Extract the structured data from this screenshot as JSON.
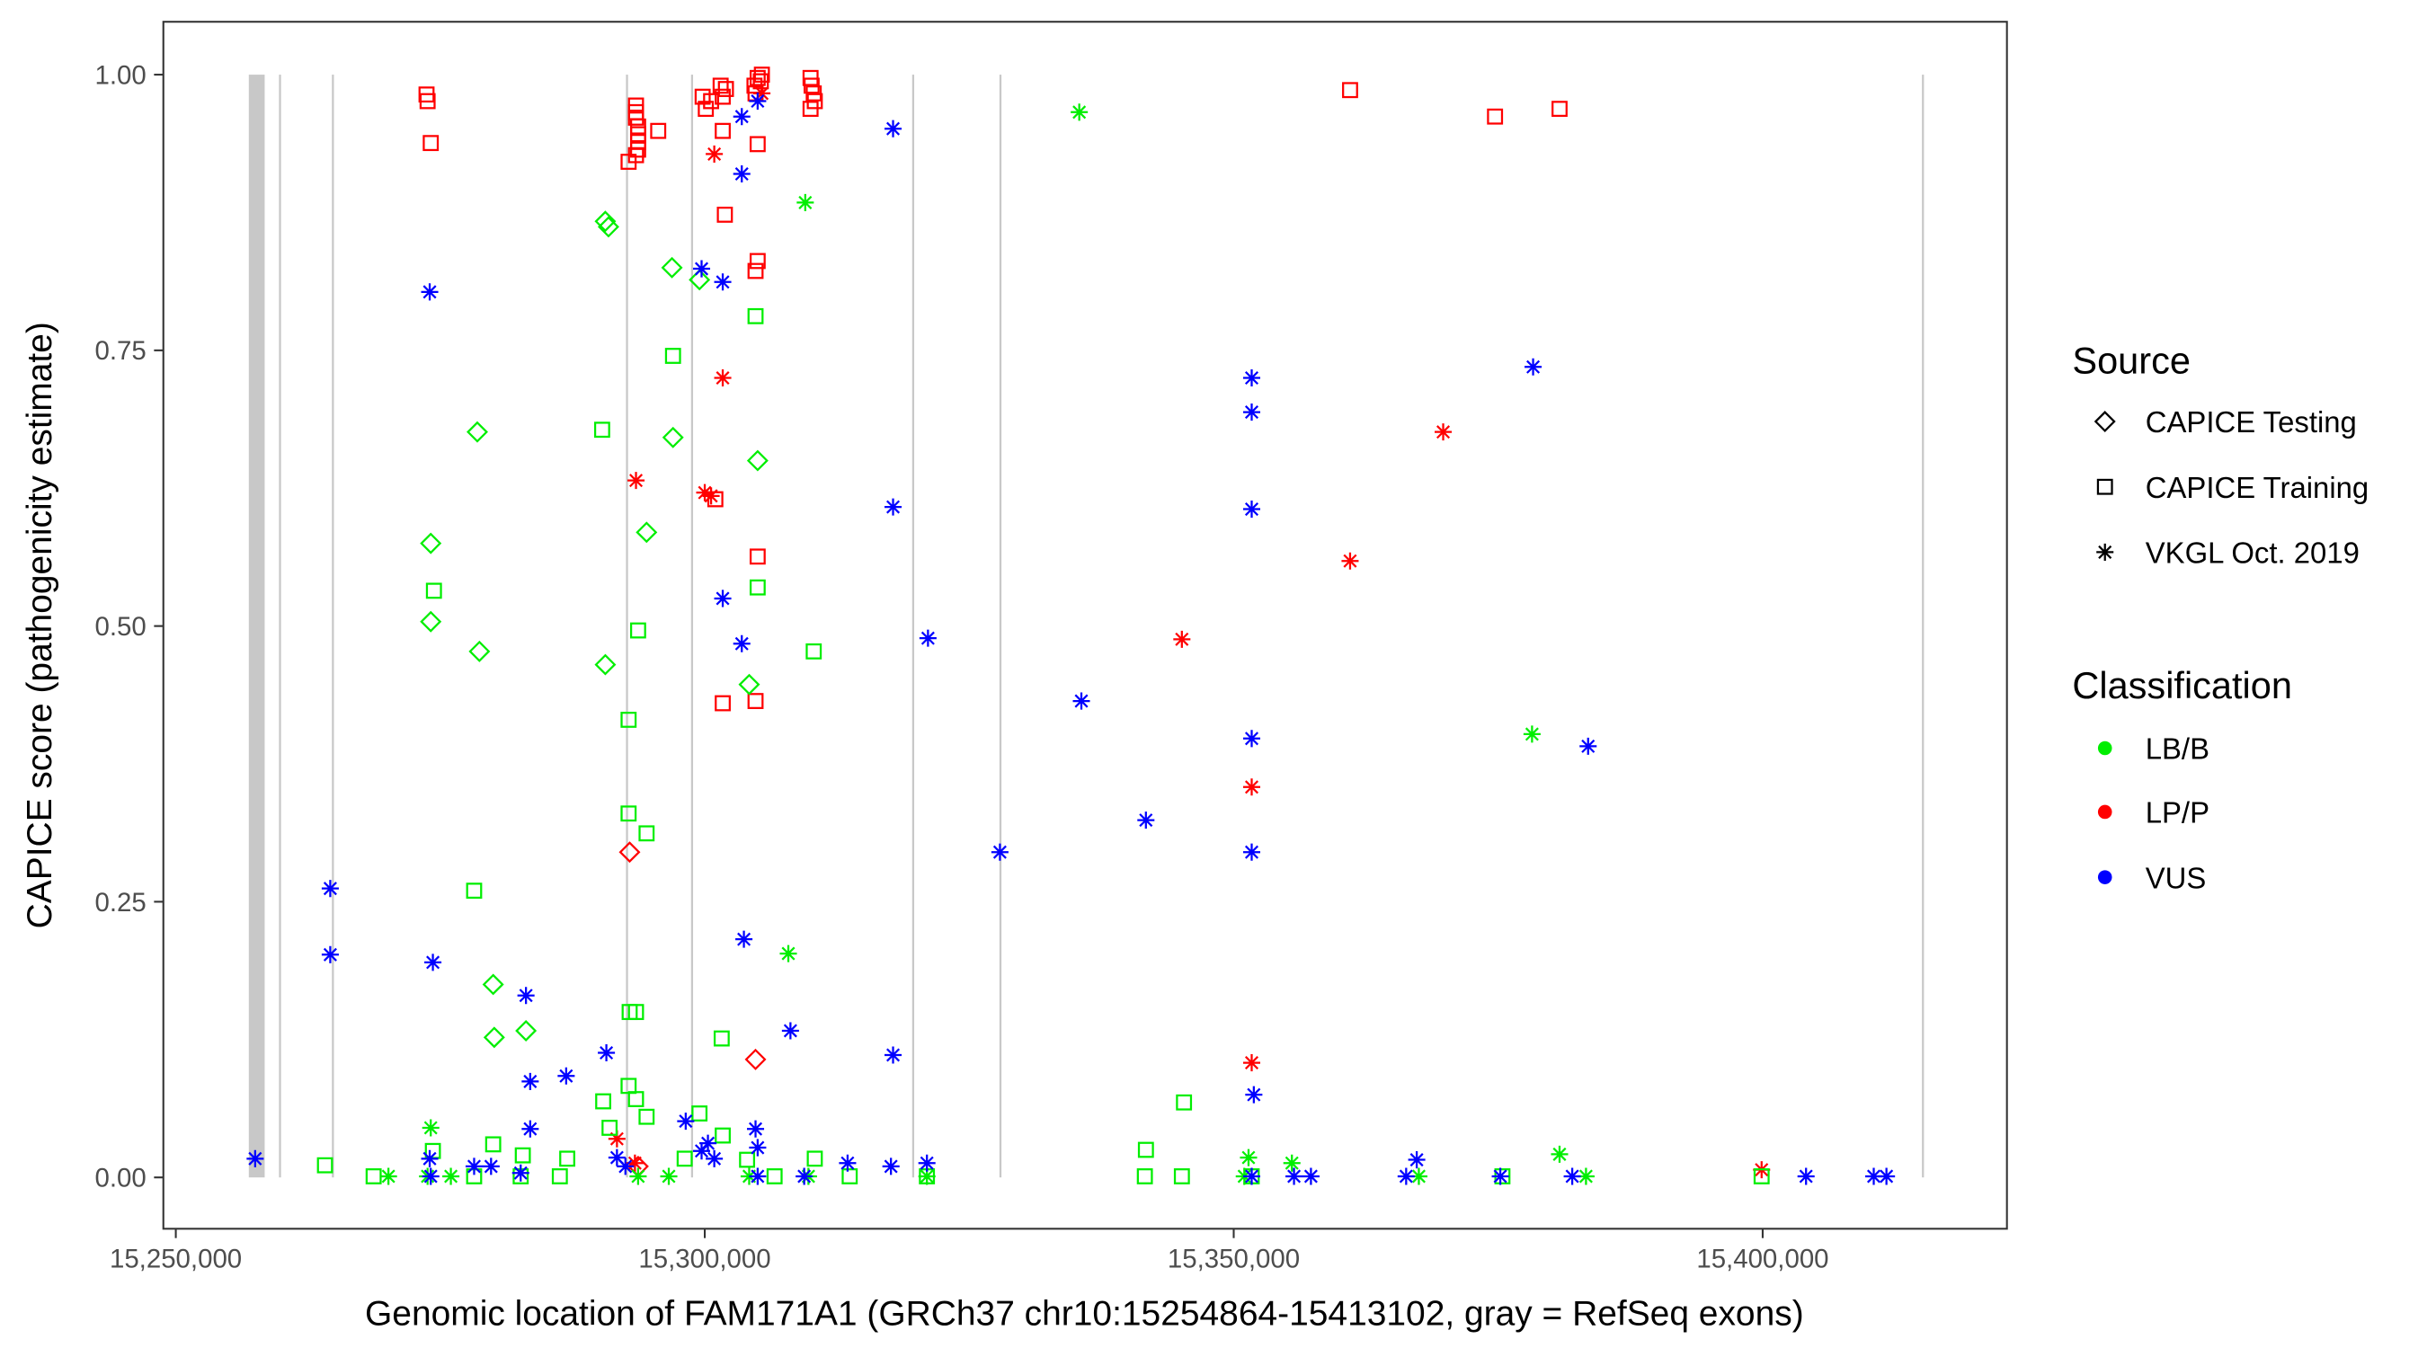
{
  "chart_data": {
    "type": "scatter",
    "xlabel": "Genomic location of FAM171A1 (GRCh37 chr10:15254864-15413102, gray = RefSeq exons)",
    "ylabel": "CAPICE score (pathogenicity estimate)",
    "xlim": [
      15248800,
      15423000
    ],
    "ylim": [
      -0.046,
      1.048
    ],
    "xticks": [
      15250000,
      15300000,
      15350000,
      15400000
    ],
    "xtick_labels": [
      "15,250,000",
      "15,300,000",
      "15,350,000",
      "15,400,000"
    ],
    "yticks": [
      0,
      0.25,
      0.5,
      0.75,
      1
    ],
    "ytick_labels": [
      "0.00",
      "0.25",
      "0.50",
      "0.75",
      "1.00"
    ],
    "grid": false,
    "legend_placement": "right",
    "legend": {
      "source_title": "Source",
      "sources": [
        "CAPICE Testing",
        "CAPICE Training",
        "VKGL Oct. 2019"
      ],
      "source_shapes": [
        "diamond",
        "square",
        "asterisk"
      ],
      "class_title": "Classification",
      "classes": [
        "LB/B",
        "LP/P",
        "VUS"
      ],
      "class_colors": [
        "#00EE00",
        "#FF0000",
        "#0000FF"
      ]
    },
    "exons": [
      [
        15256900,
        15258400
      ],
      [
        15259850,
        15259850
      ],
      [
        15264850,
        15264850
      ],
      [
        15292650,
        15292650
      ],
      [
        15298800,
        15298800
      ],
      [
        15319700,
        15319700
      ],
      [
        15327950,
        15327950
      ],
      [
        15415150,
        15415150
      ]
    ],
    "points_format": "[position, score, source_index, class_index]",
    "points": [
      [
        15273700,
        0.982,
        1,
        1
      ],
      [
        15273800,
        0.976,
        1,
        1
      ],
      [
        15274100,
        0.938,
        1,
        1
      ],
      [
        15293500,
        0.972,
        1,
        1
      ],
      [
        15293500,
        0.966,
        1,
        1
      ],
      [
        15293500,
        0.961,
        1,
        1
      ],
      [
        15293700,
        0.953,
        1,
        1
      ],
      [
        15293700,
        0.946,
        1,
        1
      ],
      [
        15293700,
        0.939,
        1,
        1
      ],
      [
        15293700,
        0.932,
        1,
        1
      ],
      [
        15293500,
        0.927,
        1,
        1
      ],
      [
        15292800,
        0.921,
        1,
        1
      ],
      [
        15295600,
        0.949,
        1,
        1
      ],
      [
        15299800,
        0.98,
        1,
        1
      ],
      [
        15300100,
        0.969,
        1,
        1
      ],
      [
        15300600,
        0.976,
        1,
        1
      ],
      [
        15301500,
        0.99,
        1,
        1
      ],
      [
        15301700,
        0.98,
        1,
        1
      ],
      [
        15302000,
        0.987,
        1,
        1
      ],
      [
        15304700,
        0.99,
        1,
        1
      ],
      [
        15305000,
        0.997,
        1,
        1
      ],
      [
        15305300,
        0.994,
        1,
        1
      ],
      [
        15304800,
        0.983,
        1,
        1
      ],
      [
        15305400,
        1.0,
        1,
        1
      ],
      [
        15310000,
        0.997,
        1,
        1
      ],
      [
        15310100,
        0.99,
        1,
        1
      ],
      [
        15310300,
        0.983,
        1,
        1
      ],
      [
        15310400,
        0.976,
        1,
        1
      ],
      [
        15310000,
        0.969,
        1,
        1
      ],
      [
        15305000,
        0.937,
        1,
        1
      ],
      [
        15305000,
        0.831,
        1,
        1
      ],
      [
        15304800,
        0.822,
        1,
        1
      ],
      [
        15301900,
        0.873,
        1,
        1
      ],
      [
        15301700,
        0.949,
        1,
        1
      ],
      [
        15301000,
        0.615,
        1,
        1
      ],
      [
        15305000,
        0.563,
        1,
        1
      ],
      [
        15301700,
        0.43,
        1,
        1
      ],
      [
        15304800,
        0.432,
        1,
        1
      ],
      [
        15361000,
        0.986,
        1,
        1
      ],
      [
        15374700,
        0.962,
        1,
        1
      ],
      [
        15380800,
        0.969,
        1,
        1
      ],
      [
        15300900,
        0.928,
        2,
        1
      ],
      [
        15301700,
        0.725,
        2,
        1
      ],
      [
        15293500,
        0.632,
        2,
        1
      ],
      [
        15300000,
        0.621,
        2,
        1
      ],
      [
        15300600,
        0.618,
        2,
        1
      ],
      [
        15305400,
        0.983,
        2,
        1
      ],
      [
        15369800,
        0.676,
        2,
        1
      ],
      [
        15361000,
        0.559,
        2,
        1
      ],
      [
        15345100,
        0.488,
        2,
        1
      ],
      [
        15351700,
        0.354,
        2,
        1
      ],
      [
        15351700,
        0.104,
        2,
        1
      ],
      [
        15291700,
        0.035,
        2,
        1
      ],
      [
        15399900,
        0.007,
        2,
        1
      ],
      [
        15293400,
        0.013,
        2,
        1
      ],
      [
        15292900,
        0.295,
        0,
        1
      ],
      [
        15304800,
        0.107,
        0,
        1
      ],
      [
        15293700,
        0.01,
        0,
        1
      ],
      [
        15297000,
        0.745,
        1,
        0
      ],
      [
        15304800,
        0.781,
        1,
        0
      ],
      [
        15290300,
        0.678,
        1,
        0
      ],
      [
        15293700,
        0.496,
        1,
        0
      ],
      [
        15274400,
        0.532,
        1,
        0
      ],
      [
        15310300,
        0.477,
        1,
        0
      ],
      [
        15305000,
        0.535,
        1,
        0
      ],
      [
        15292800,
        0.415,
        1,
        0
      ],
      [
        15292800,
        0.33,
        1,
        0
      ],
      [
        15294500,
        0.312,
        1,
        0
      ],
      [
        15278200,
        0.26,
        1,
        0
      ],
      [
        15301600,
        0.126,
        1,
        0
      ],
      [
        15292900,
        0.15,
        1,
        0
      ],
      [
        15293500,
        0.15,
        1,
        0
      ],
      [
        15264100,
        0.011,
        1,
        0
      ],
      [
        15268700,
        0.001,
        1,
        0
      ],
      [
        15341700,
        0.025,
        1,
        0
      ],
      [
        15345300,
        0.068,
        1,
        0
      ],
      [
        15292800,
        0.083,
        1,
        0
      ],
      [
        15293500,
        0.071,
        1,
        0
      ],
      [
        15299500,
        0.058,
        1,
        0
      ],
      [
        15301700,
        0.038,
        1,
        0
      ],
      [
        15290400,
        0.069,
        1,
        0
      ],
      [
        15291000,
        0.045,
        1,
        0
      ],
      [
        15280000,
        0.03,
        1,
        0
      ],
      [
        15282800,
        0.02,
        1,
        0
      ],
      [
        15287000,
        0.017,
        1,
        0
      ],
      [
        15294500,
        0.055,
        1,
        0
      ],
      [
        15310400,
        0.017,
        1,
        0
      ],
      [
        15313700,
        0.001,
        1,
        0
      ],
      [
        15321000,
        0.001,
        1,
        0
      ],
      [
        15341600,
        0.001,
        1,
        0
      ],
      [
        15345100,
        0.001,
        1,
        0
      ],
      [
        15351700,
        0.001,
        1,
        0
      ],
      [
        15375400,
        0.001,
        1,
        0
      ],
      [
        15399900,
        0.001,
        1,
        0
      ],
      [
        15274300,
        0.024,
        1,
        0
      ],
      [
        15278200,
        0.001,
        1,
        0
      ],
      [
        15282600,
        0.001,
        1,
        0
      ],
      [
        15286300,
        0.001,
        1,
        0
      ],
      [
        15298100,
        0.017,
        1,
        0
      ],
      [
        15304000,
        0.016,
        1,
        0
      ],
      [
        15306600,
        0.001,
        1,
        0
      ],
      [
        15290600,
        0.867,
        0,
        0
      ],
      [
        15290900,
        0.862,
        0,
        0
      ],
      [
        15296900,
        0.825,
        0,
        0
      ],
      [
        15299500,
        0.814,
        0,
        0
      ],
      [
        15278500,
        0.676,
        0,
        0
      ],
      [
        15297000,
        0.671,
        0,
        0
      ],
      [
        15305000,
        0.65,
        0,
        0
      ],
      [
        15294500,
        0.585,
        0,
        0
      ],
      [
        15274100,
        0.575,
        0,
        0
      ],
      [
        15274100,
        0.504,
        0,
        0
      ],
      [
        15278700,
        0.477,
        0,
        0
      ],
      [
        15290600,
        0.465,
        0,
        0
      ],
      [
        15304200,
        0.447,
        0,
        0
      ],
      [
        15280000,
        0.175,
        0,
        0
      ],
      [
        15283100,
        0.133,
        0,
        0
      ],
      [
        15280100,
        0.127,
        0,
        0
      ],
      [
        15335400,
        0.966,
        2,
        0
      ],
      [
        15309500,
        0.884,
        2,
        0
      ],
      [
        15307900,
        0.203,
        2,
        0
      ],
      [
        15378200,
        0.402,
        2,
        0
      ],
      [
        15274100,
        0.045,
        2,
        0
      ],
      [
        15380800,
        0.021,
        2,
        0
      ],
      [
        15351400,
        0.018,
        2,
        0
      ],
      [
        15355500,
        0.013,
        2,
        0
      ],
      [
        15270100,
        0.001,
        2,
        0
      ],
      [
        15273800,
        0.001,
        2,
        0
      ],
      [
        15276000,
        0.001,
        2,
        0
      ],
      [
        15383300,
        0.001,
        2,
        0
      ],
      [
        15367500,
        0.001,
        2,
        0
      ],
      [
        15321000,
        0.001,
        2,
        0
      ],
      [
        15304200,
        0.001,
        2,
        0
      ],
      [
        15293700,
        0.001,
        2,
        0
      ],
      [
        15296600,
        0.001,
        2,
        0
      ],
      [
        15309800,
        0.001,
        2,
        0
      ],
      [
        15351000,
        0.001,
        2,
        0
      ],
      [
        15257500,
        0.017,
        2,
        2
      ],
      [
        15264600,
        0.262,
        2,
        2
      ],
      [
        15264600,
        0.202,
        2,
        2
      ],
      [
        15274300,
        0.195,
        2,
        2
      ],
      [
        15274000,
        0.803,
        2,
        2
      ],
      [
        15283100,
        0.165,
        2,
        2
      ],
      [
        15283500,
        0.087,
        2,
        2
      ],
      [
        15283500,
        0.044,
        2,
        2
      ],
      [
        15286900,
        0.092,
        2,
        2
      ],
      [
        15290700,
        0.113,
        2,
        2
      ],
      [
        15291700,
        0.018,
        2,
        2
      ],
      [
        15292500,
        0.01,
        2,
        2
      ],
      [
        15303500,
        0.962,
        2,
        2
      ],
      [
        15303500,
        0.91,
        2,
        2
      ],
      [
        15305000,
        0.976,
        2,
        2
      ],
      [
        15303700,
        0.216,
        2,
        2
      ],
      [
        15301700,
        0.812,
        2,
        2
      ],
      [
        15299700,
        0.824,
        2,
        2
      ],
      [
        15301700,
        0.525,
        2,
        2
      ],
      [
        15303500,
        0.484,
        2,
        2
      ],
      [
        15308100,
        0.133,
        2,
        2
      ],
      [
        15317800,
        0.951,
        2,
        2
      ],
      [
        15317800,
        0.608,
        2,
        2
      ],
      [
        15317800,
        0.111,
        2,
        2
      ],
      [
        15321100,
        0.489,
        2,
        2
      ],
      [
        15321000,
        0.013,
        2,
        2
      ],
      [
        15313500,
        0.013,
        2,
        2
      ],
      [
        15317600,
        0.01,
        2,
        2
      ],
      [
        15327900,
        0.295,
        2,
        2
      ],
      [
        15335600,
        0.432,
        2,
        2
      ],
      [
        15341700,
        0.324,
        2,
        2
      ],
      [
        15351700,
        0.725,
        2,
        2
      ],
      [
        15351700,
        0.694,
        2,
        2
      ],
      [
        15351700,
        0.606,
        2,
        2
      ],
      [
        15351700,
        0.398,
        2,
        2
      ],
      [
        15351700,
        0.295,
        2,
        2
      ],
      [
        15351900,
        0.075,
        2,
        2
      ],
      [
        15378300,
        0.735,
        2,
        2
      ],
      [
        15383500,
        0.391,
        2,
        2
      ],
      [
        15351700,
        0.001,
        2,
        2
      ],
      [
        15355700,
        0.001,
        2,
        2
      ],
      [
        15357300,
        0.001,
        2,
        2
      ],
      [
        15366300,
        0.001,
        2,
        2
      ],
      [
        15367300,
        0.016,
        2,
        2
      ],
      [
        15375200,
        0.001,
        2,
        2
      ],
      [
        15382000,
        0.001,
        2,
        2
      ],
      [
        15404100,
        0.001,
        2,
        2
      ],
      [
        15410500,
        0.001,
        2,
        2
      ],
      [
        15411700,
        0.001,
        2,
        2
      ],
      [
        15274000,
        0.017,
        2,
        2
      ],
      [
        15278200,
        0.01,
        2,
        2
      ],
      [
        15279800,
        0.01,
        2,
        2
      ],
      [
        15282600,
        0.004,
        2,
        2
      ],
      [
        15298200,
        0.051,
        2,
        2
      ],
      [
        15299700,
        0.024,
        2,
        2
      ],
      [
        15300300,
        0.031,
        2,
        2
      ],
      [
        15304800,
        0.044,
        2,
        2
      ],
      [
        15305000,
        0.027,
        2,
        2
      ],
      [
        15305000,
        0.001,
        2,
        2
      ],
      [
        15309400,
        0.001,
        2,
        2
      ],
      [
        15274100,
        0.001,
        2,
        2
      ],
      [
        15300900,
        0.017,
        2,
        2
      ]
    ]
  }
}
